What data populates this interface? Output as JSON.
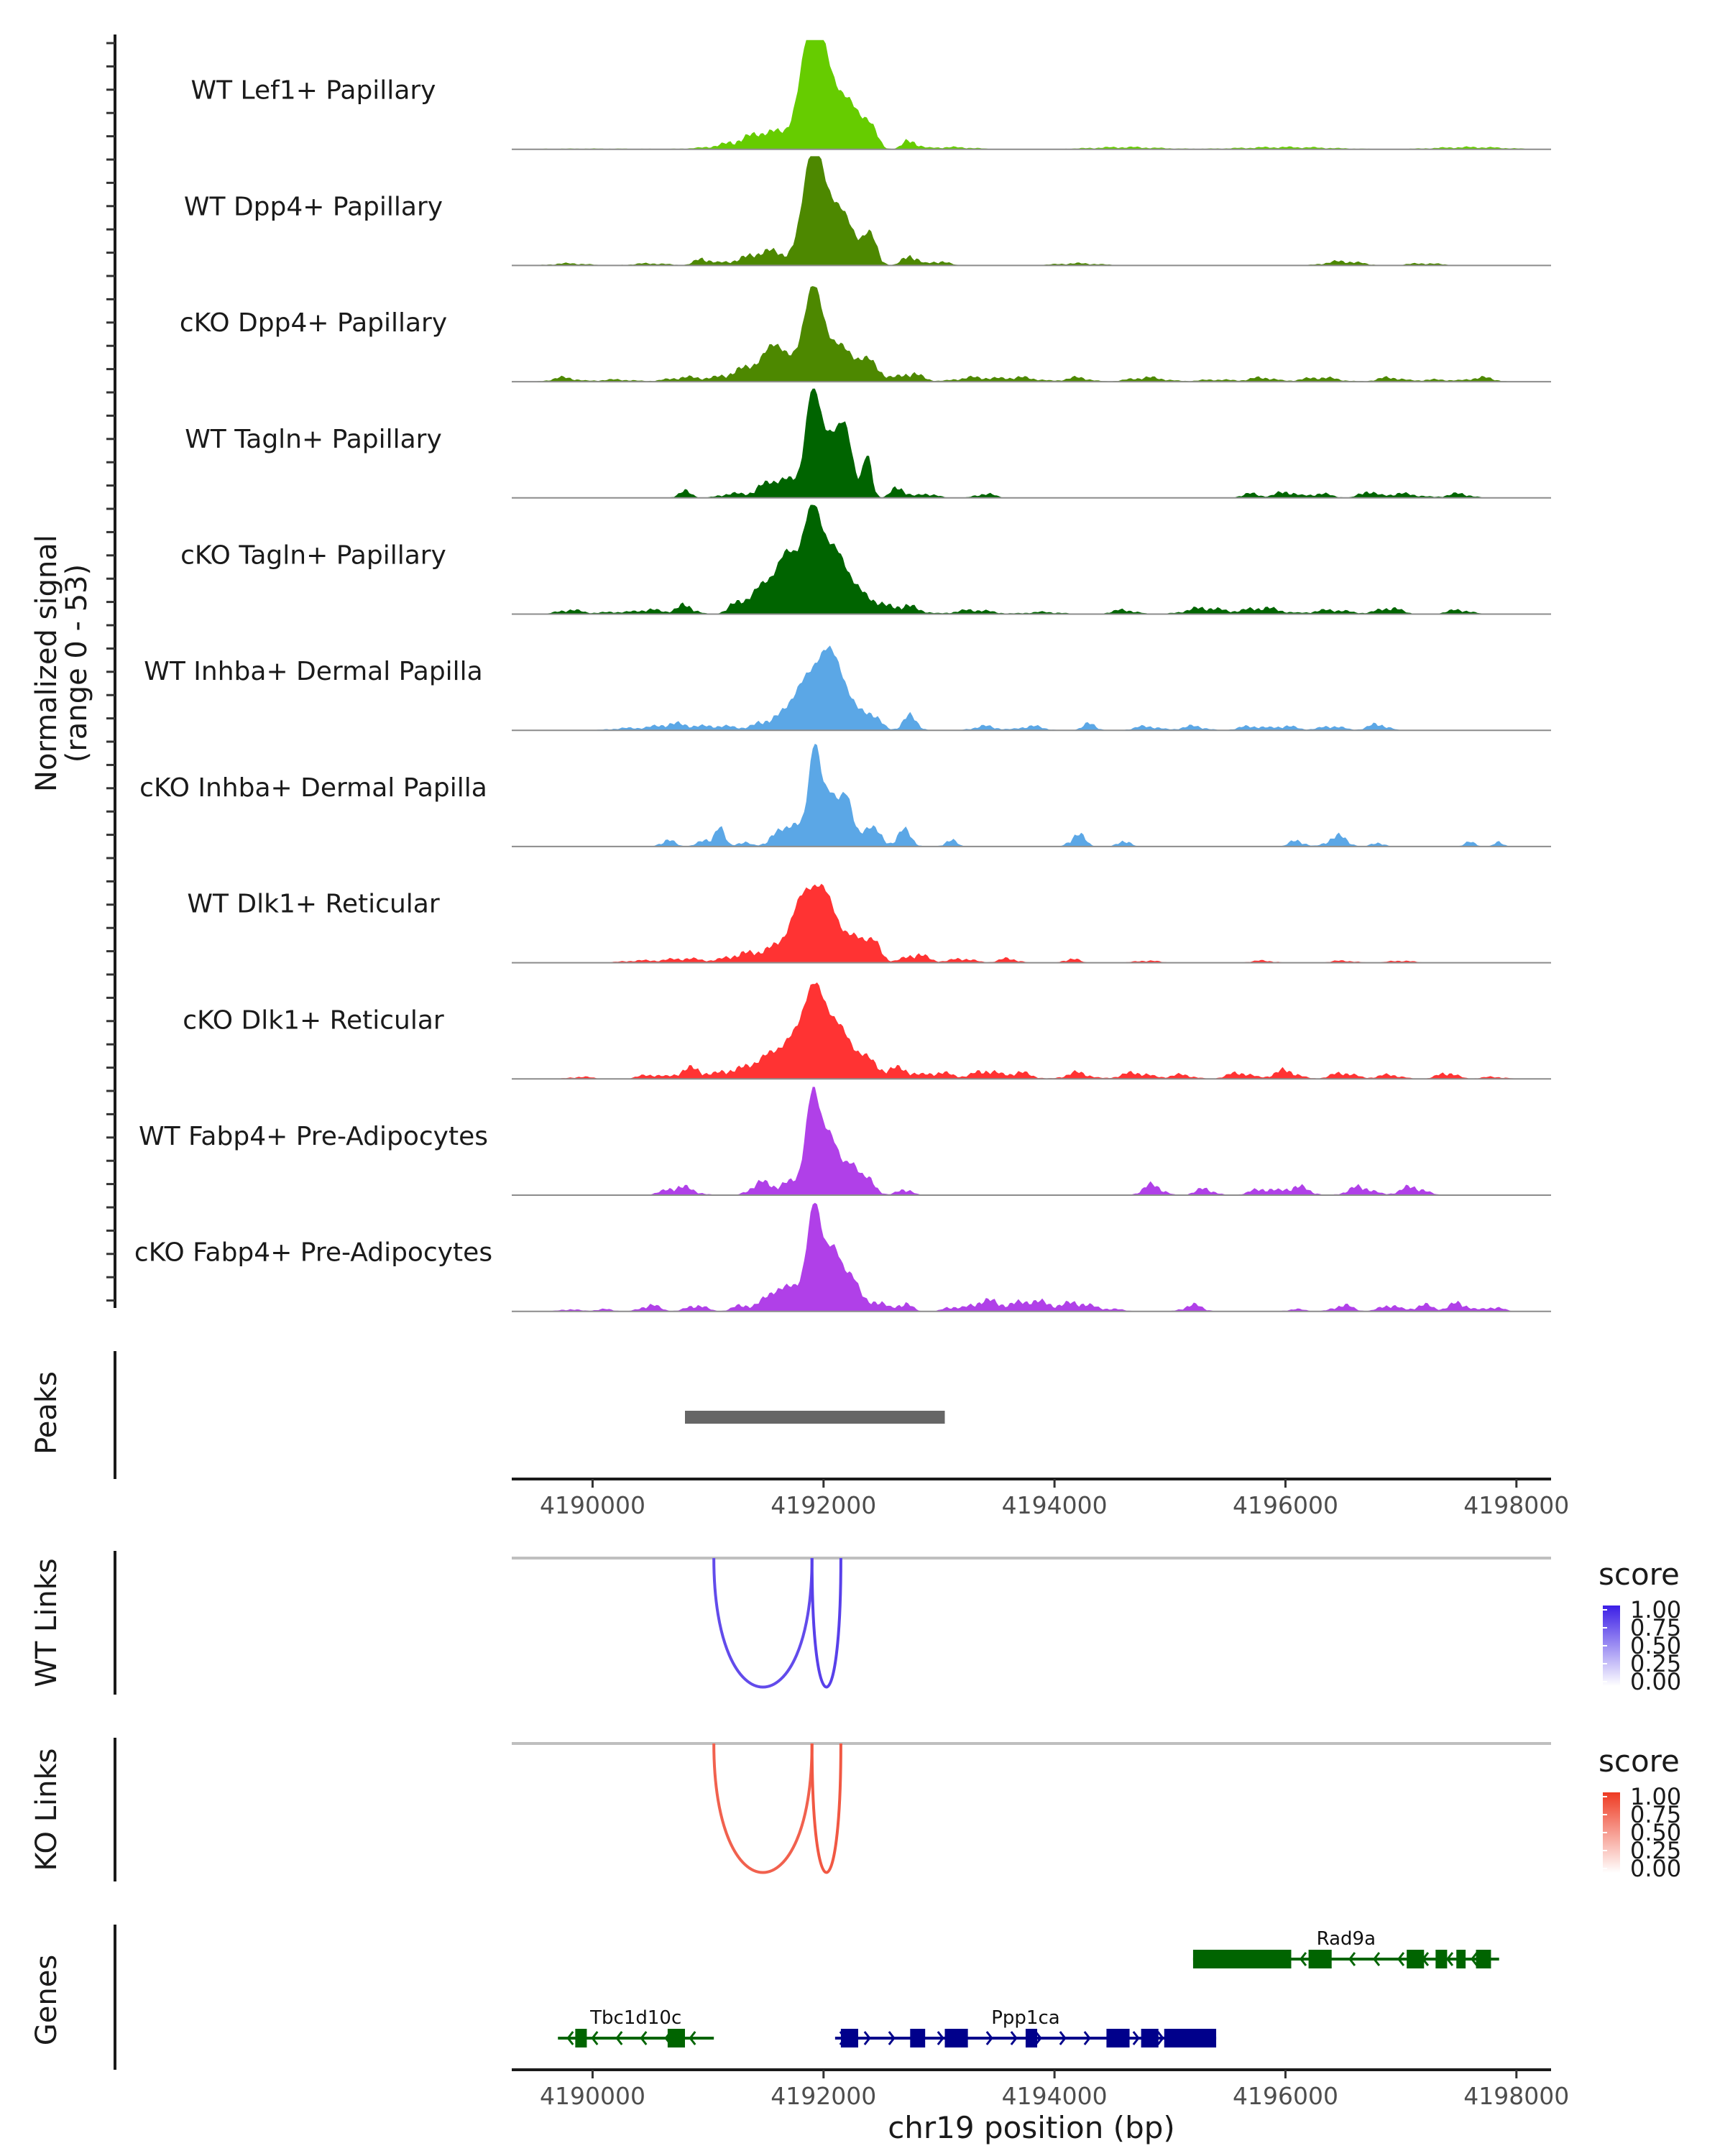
{
  "chart_data": {
    "type": "area",
    "title": "",
    "region": "chr19",
    "xlabel": "chr19 position (bp)",
    "xlim": [
      4189300,
      4198300
    ],
    "x_ticks": [
      4190000,
      4192000,
      4194000,
      4196000,
      4198000
    ],
    "x_tick_labels": [
      "4190000",
      "4192000",
      "4194000",
      "4196000",
      "4198000"
    ],
    "coverage_ylabel_line1": "Normalized signal",
    "coverage_ylabel_line2": "(range 0 - 53)",
    "ylim": [
      0,
      53
    ],
    "tracks": [
      {
        "name": "WT Lef1+ Papillary",
        "color": "#66cc00",
        "peaks": [
          [
            4190000,
            0.3,
            500
          ],
          [
            4191300,
            2,
            250
          ],
          [
            4191550,
            7,
            200
          ],
          [
            4191900,
            43,
            90
          ],
          [
            4192020,
            30,
            150
          ],
          [
            4192250,
            12,
            100
          ],
          [
            4192400,
            9,
            60
          ],
          [
            4192750,
            4,
            60
          ],
          [
            4193100,
            1,
            200
          ],
          [
            4194600,
            1,
            300
          ],
          [
            4196000,
            1,
            400
          ],
          [
            4197600,
            1,
            300
          ]
        ]
      },
      {
        "name": "WT Dpp4+ Papillary",
        "color": "#4d8800",
        "peaks": [
          [
            4189800,
            1,
            150
          ],
          [
            4190500,
            1,
            150
          ],
          [
            4190950,
            3,
            60
          ],
          [
            4191300,
            2,
            200
          ],
          [
            4191550,
            6,
            150
          ],
          [
            4191900,
            48,
            80
          ],
          [
            4192100,
            30,
            140
          ],
          [
            4192400,
            13,
            60
          ],
          [
            4192750,
            5,
            60
          ],
          [
            4193000,
            2,
            80
          ],
          [
            4194200,
            1,
            200
          ],
          [
            4196500,
            2,
            150
          ],
          [
            4197200,
            1,
            150
          ]
        ]
      },
      {
        "name": "cKO Dpp4+ Papillary",
        "color": "#4d8800",
        "peaks": [
          [
            4189750,
            2,
            100
          ],
          [
            4190200,
            1,
            150
          ],
          [
            4190800,
            2,
            150
          ],
          [
            4191450,
            8,
            220
          ],
          [
            4191600,
            12,
            90
          ],
          [
            4191900,
            38,
            80
          ],
          [
            4192100,
            18,
            150
          ],
          [
            4192400,
            8,
            90
          ],
          [
            4192750,
            4,
            100
          ],
          [
            4193300,
            2,
            150
          ],
          [
            4193700,
            2,
            150
          ],
          [
            4194200,
            2,
            100
          ],
          [
            4194800,
            2,
            150
          ],
          [
            4195400,
            1,
            150
          ],
          [
            4195800,
            2,
            100
          ],
          [
            4196300,
            2,
            150
          ],
          [
            4196900,
            2,
            100
          ],
          [
            4197300,
            1,
            150
          ],
          [
            4197700,
            2,
            100
          ]
        ]
      },
      {
        "name": "WT Tagln+ Papillary",
        "color": "#006400",
        "peaks": [
          [
            4190800,
            3,
            60
          ],
          [
            4191200,
            2,
            100
          ],
          [
            4191500,
            5,
            100
          ],
          [
            4191700,
            8,
            120
          ],
          [
            4191900,
            42,
            60
          ],
          [
            4192050,
            30,
            100
          ],
          [
            4192200,
            25,
            60
          ],
          [
            4192380,
            20,
            40
          ],
          [
            4192650,
            5,
            60
          ],
          [
            4192900,
            2,
            80
          ],
          [
            4193400,
            2,
            80
          ],
          [
            4195700,
            2,
            80
          ],
          [
            4196000,
            3,
            80
          ],
          [
            4196300,
            2,
            100
          ],
          [
            4196700,
            3,
            60
          ],
          [
            4197000,
            2,
            150
          ],
          [
            4197500,
            2,
            100
          ]
        ]
      },
      {
        "name": "cKO Tagln+ Papillary",
        "color": "#006400",
        "peaks": [
          [
            4189800,
            2,
            100
          ],
          [
            4190200,
            1,
            150
          ],
          [
            4190500,
            2,
            100
          ],
          [
            4190800,
            4,
            80
          ],
          [
            4191250,
            4,
            80
          ],
          [
            4191500,
            14,
            120
          ],
          [
            4191700,
            25,
            90
          ],
          [
            4191900,
            42,
            80
          ],
          [
            4192100,
            30,
            130
          ],
          [
            4192400,
            6,
            100
          ],
          [
            4192700,
            4,
            120
          ],
          [
            4193300,
            2,
            150
          ],
          [
            4193900,
            1,
            150
          ],
          [
            4194600,
            2,
            100
          ],
          [
            4195300,
            3,
            150
          ],
          [
            4195800,
            3,
            150
          ],
          [
            4196400,
            2,
            150
          ],
          [
            4196900,
            3,
            100
          ],
          [
            4197500,
            2,
            100
          ]
        ]
      },
      {
        "name": "WT Inhba+ Dermal Papilla",
        "color": "#5ba7e6",
        "peaks": [
          [
            4190300,
            1,
            150
          ],
          [
            4190700,
            3,
            150
          ],
          [
            4191100,
            2,
            150
          ],
          [
            4191550,
            5,
            120
          ],
          [
            4191800,
            18,
            100
          ],
          [
            4192000,
            30,
            100
          ],
          [
            4192150,
            20,
            100
          ],
          [
            4192400,
            8,
            80
          ],
          [
            4192750,
            7,
            60
          ],
          [
            4193400,
            2,
            100
          ],
          [
            4193800,
            2,
            100
          ],
          [
            4194300,
            3,
            60
          ],
          [
            4194800,
            2,
            100
          ],
          [
            4195200,
            2,
            100
          ],
          [
            4195700,
            2,
            100
          ],
          [
            4196000,
            2,
            100
          ],
          [
            4196400,
            2,
            100
          ],
          [
            4196800,
            3,
            80
          ]
        ]
      },
      {
        "name": "cKO Inhba+ Dermal Papilla",
        "color": "#5ba7e6",
        "peaks": [
          [
            4190650,
            3,
            60
          ],
          [
            4191000,
            3,
            80
          ],
          [
            4191100,
            8,
            40
          ],
          [
            4191300,
            2,
            60
          ],
          [
            4191600,
            5,
            80
          ],
          [
            4191750,
            10,
            80
          ],
          [
            4191920,
            45,
            50
          ],
          [
            4192060,
            25,
            80
          ],
          [
            4192200,
            20,
            50
          ],
          [
            4192400,
            10,
            80
          ],
          [
            4192700,
            8,
            60
          ],
          [
            4193100,
            3,
            50
          ],
          [
            4194200,
            6,
            60
          ],
          [
            4194600,
            3,
            50
          ],
          [
            4196100,
            3,
            60
          ],
          [
            4196450,
            5,
            80
          ],
          [
            4196800,
            2,
            50
          ],
          [
            4197600,
            2,
            50
          ],
          [
            4197850,
            2,
            40
          ]
        ]
      },
      {
        "name": "WT Dlk1+ Reticular",
        "color": "#ff3333",
        "peaks": [
          [
            4190400,
            1,
            150
          ],
          [
            4190800,
            2,
            150
          ],
          [
            4191250,
            3,
            120
          ],
          [
            4191550,
            6,
            150
          ],
          [
            4191850,
            32,
            120
          ],
          [
            4192050,
            24,
            100
          ],
          [
            4192300,
            12,
            80
          ],
          [
            4192450,
            8,
            60
          ],
          [
            4192800,
            4,
            100
          ],
          [
            4193200,
            2,
            100
          ],
          [
            4193600,
            2,
            80
          ],
          [
            4194150,
            2,
            60
          ],
          [
            4194800,
            1,
            100
          ],
          [
            4195800,
            1,
            100
          ],
          [
            4196500,
            1,
            100
          ],
          [
            4197000,
            1,
            100
          ]
        ]
      },
      {
        "name": "cKO Dlk1+ Reticular",
        "color": "#ff3333",
        "peaks": [
          [
            4189900,
            1,
            100
          ],
          [
            4190500,
            2,
            100
          ],
          [
            4190850,
            5,
            100
          ],
          [
            4191200,
            4,
            120
          ],
          [
            4191500,
            10,
            120
          ],
          [
            4191700,
            14,
            90
          ],
          [
            4191900,
            40,
            90
          ],
          [
            4192100,
            26,
            110
          ],
          [
            4192350,
            10,
            100
          ],
          [
            4192650,
            5,
            100
          ],
          [
            4193000,
            3,
            120
          ],
          [
            4193400,
            4,
            100
          ],
          [
            4193700,
            3,
            100
          ],
          [
            4194200,
            3,
            100
          ],
          [
            4194700,
            3,
            120
          ],
          [
            4195100,
            2,
            100
          ],
          [
            4195600,
            3,
            100
          ],
          [
            4196000,
            4,
            100
          ],
          [
            4196500,
            3,
            100
          ],
          [
            4196900,
            2,
            100
          ],
          [
            4197400,
            3,
            80
          ],
          [
            4197800,
            1,
            100
          ]
        ]
      },
      {
        "name": "WT Fabp4+ Pre-Adipocytes",
        "color": "#b040e8",
        "peaks": [
          [
            4190750,
            4,
            120
          ],
          [
            4191450,
            6,
            80
          ],
          [
            4191700,
            6,
            100
          ],
          [
            4191900,
            45,
            60
          ],
          [
            4192050,
            30,
            80
          ],
          [
            4192250,
            15,
            60
          ],
          [
            4192400,
            7,
            60
          ],
          [
            4192700,
            3,
            60
          ],
          [
            4194850,
            5,
            80
          ],
          [
            4195300,
            3,
            80
          ],
          [
            4195800,
            3,
            100
          ],
          [
            4196100,
            4,
            100
          ],
          [
            4196650,
            4,
            100
          ],
          [
            4197100,
            4,
            100
          ]
        ]
      },
      {
        "name": "cKO Fabp4+ Pre-Adipocytes",
        "color": "#b040e8",
        "peaks": [
          [
            4189800,
            1,
            80
          ],
          [
            4190100,
            1,
            80
          ],
          [
            4190500,
            3,
            80
          ],
          [
            4190900,
            3,
            80
          ],
          [
            4191300,
            3,
            80
          ],
          [
            4191550,
            8,
            80
          ],
          [
            4191750,
            12,
            100
          ],
          [
            4191920,
            46,
            60
          ],
          [
            4192080,
            30,
            80
          ],
          [
            4192250,
            15,
            60
          ],
          [
            4192450,
            5,
            80
          ],
          [
            4192700,
            4,
            60
          ],
          [
            4193100,
            2,
            60
          ],
          [
            4193400,
            5,
            120
          ],
          [
            4193800,
            5,
            150
          ],
          [
            4194200,
            4,
            120
          ],
          [
            4194500,
            1,
            100
          ],
          [
            4195200,
            3,
            80
          ],
          [
            4196100,
            1,
            80
          ],
          [
            4196500,
            3,
            80
          ],
          [
            4196900,
            3,
            80
          ],
          [
            4197200,
            3,
            80
          ],
          [
            4197500,
            4,
            80
          ],
          [
            4197800,
            2,
            80
          ]
        ]
      }
    ],
    "peaks_panel": {
      "label": "Peaks",
      "ranges": [
        [
          4190800,
          4193050
        ]
      ],
      "color": "#666666"
    },
    "links_panels": [
      {
        "label": "WT Links",
        "legend_title": "score",
        "legend_ticks": [
          "1.00",
          "0.75",
          "0.50",
          "0.25",
          "0.00"
        ],
        "color_high": "#3b1ee6",
        "color_low": "#ffffff",
        "links": [
          {
            "start": 4191050,
            "end": 4191900,
            "score": 0.8
          },
          {
            "start": 4191900,
            "end": 4192150,
            "score": 0.85
          }
        ]
      },
      {
        "label": "KO Links",
        "legend_title": "score",
        "legend_ticks": [
          "1.00",
          "0.75",
          "0.50",
          "0.25",
          "0.00"
        ],
        "color_high": "#ee3a22",
        "color_low": "#ffffff",
        "links": [
          {
            "start": 4191050,
            "end": 4191900,
            "score": 0.8
          },
          {
            "start": 4191900,
            "end": 4192150,
            "score": 0.85
          }
        ]
      }
    ],
    "genes_panel": {
      "label": "Genes",
      "genes": [
        {
          "name": "Rad9a",
          "start": 4195200,
          "end": 4197850,
          "strand": "-",
          "color": "#006400",
          "row": 0,
          "exons": [
            [
              4195200,
              4196050
            ],
            [
              4196200,
              4196400
            ],
            [
              4197050,
              4197200
            ],
            [
              4197300,
              4197400
            ],
            [
              4197480,
              4197560
            ],
            [
              4197650,
              4197780
            ]
          ]
        },
        {
          "name": "Tbc1d10c",
          "start": 4189700,
          "end": 4191050,
          "strand": "-",
          "color": "#006400",
          "row": 1,
          "exons": [
            [
              4189850,
              4189950
            ],
            [
              4190650,
              4190800
            ]
          ]
        },
        {
          "name": "Ppp1ca",
          "start": 4192100,
          "end": 4195400,
          "strand": "+",
          "color": "#00008b",
          "row": 1,
          "exons": [
            [
              4192150,
              4192300
            ],
            [
              4192750,
              4192880
            ],
            [
              4193050,
              4193250
            ],
            [
              4193750,
              4193850
            ],
            [
              4194450,
              4194650
            ],
            [
              4194750,
              4194900
            ],
            [
              4194950,
              4195400
            ]
          ]
        }
      ]
    }
  }
}
